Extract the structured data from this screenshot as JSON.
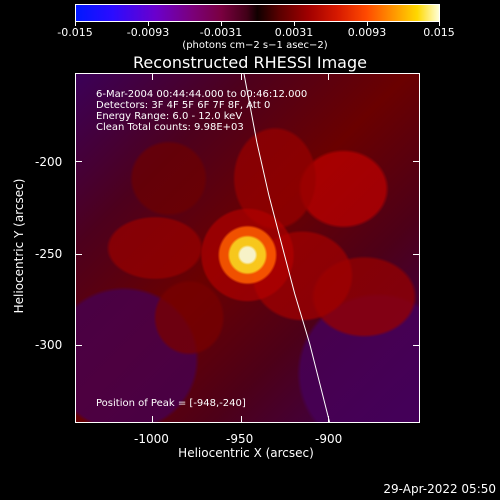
{
  "colorbar": {
    "ticks": [
      "-0.015",
      "-0.0093",
      "-0.0031",
      "0.0031",
      "0.0093",
      "0.015"
    ],
    "unit": "(photons cm−2 s−1 asec−2)"
  },
  "plot": {
    "title": "Reconstructed RHESSI Image",
    "annotation_lines": [
      "6-Mar-2004 00:44:44.000 to 00:46:12.000",
      "Detectors: 3F 4F 5F 6F 7F 8F, Att 0",
      "Energy Range: 6.0 - 12.0 keV",
      "Clean     Total counts: 9.98E+03"
    ],
    "peak_label": "Position of Peak = [-948,-240]",
    "x_axis_title": "Heliocentric X (arcsec)",
    "y_axis_title": "Heliocentric Y (arcsec)",
    "x_ticks": [
      "-1000",
      "-950",
      "-900"
    ],
    "y_ticks": [
      "-200",
      "-250",
      "-300"
    ]
  },
  "footer": {
    "date": "29-Apr-2022 05:50"
  },
  "colors": {
    "background": "#000000",
    "foreground": "#ffffff",
    "limb_line": "#ffffff"
  }
}
